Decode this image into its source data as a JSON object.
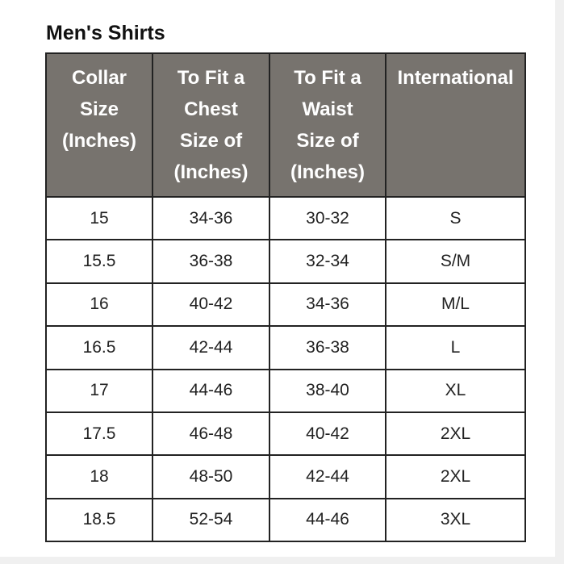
{
  "title": "Men's Shirts",
  "table": {
    "header": [
      [
        "Collar",
        "Size",
        "(Inches)"
      ],
      [
        "To Fit a",
        "Chest",
        "Size of",
        "(Inches)"
      ],
      [
        "To Fit a",
        "Waist",
        "Size of",
        "(Inches)"
      ],
      [
        "International"
      ]
    ],
    "rows": [
      [
        "15",
        "34-36",
        "30-32",
        "S"
      ],
      [
        "15.5",
        "36-38",
        "32-34",
        "S/M"
      ],
      [
        "16",
        "40-42",
        "34-36",
        "M/L"
      ],
      [
        "16.5",
        "42-44",
        "36-38",
        "L"
      ],
      [
        "17",
        "44-46",
        "38-40",
        "XL"
      ],
      [
        "17.5",
        "46-48",
        "40-42",
        "2XL"
      ],
      [
        "18",
        "48-50",
        "42-44",
        "2XL"
      ],
      [
        "18.5",
        "52-54",
        "44-46",
        "3XL"
      ]
    ]
  }
}
